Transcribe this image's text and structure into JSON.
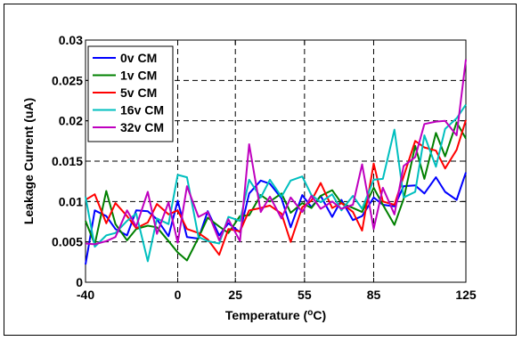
{
  "chart_data": {
    "type": "line",
    "xlabel": "Temperature (",
    "xlabel_sup": "o",
    "xlabel_unit": "C)",
    "ylabel": "Leakage Current (uA)",
    "xlim": [
      -40,
      125
    ],
    "ylim": [
      0,
      0.03
    ],
    "xticks": [
      -40,
      0,
      25,
      55,
      85,
      125
    ],
    "yticks": [
      0,
      0.005,
      0.01,
      0.015,
      0.02,
      0.025,
      0.03
    ],
    "ytick_labels": [
      "0",
      "0.005",
      "0.01",
      "0.015",
      "0.02",
      "0.025",
      "0.03"
    ],
    "grid": true,
    "legend_position": "top-left",
    "x": [
      -40,
      -36,
      -31,
      -27,
      -22,
      -18,
      -13,
      -9,
      -4,
      0,
      4,
      9,
      13,
      18,
      22,
      27,
      31,
      36,
      40,
      45,
      49,
      54,
      58,
      62,
      67,
      71,
      76,
      80,
      85,
      89,
      94,
      98,
      103,
      107,
      112,
      116,
      121,
      125
    ],
    "series": [
      {
        "name": "0v CM",
        "color": "#0000ff",
        "values": [
          0.0022,
          0.0089,
          0.0082,
          0.0066,
          0.0058,
          0.0089,
          0.0088,
          0.0078,
          0.0057,
          0.0101,
          0.0056,
          0.0054,
          0.0088,
          0.0058,
          0.0073,
          0.0062,
          0.011,
          0.0126,
          0.0122,
          0.0104,
          0.0068,
          0.0108,
          0.0093,
          0.0107,
          0.0081,
          0.0102,
          0.0077,
          0.0082,
          0.0105,
          0.0096,
          0.0094,
          0.0119,
          0.012,
          0.011,
          0.013,
          0.0112,
          0.0102,
          0.0136
        ]
      },
      {
        "name": "1v CM",
        "color": "#008000",
        "values": [
          0.0076,
          0.0047,
          0.0113,
          0.0072,
          0.0052,
          0.0066,
          0.007,
          0.0068,
          0.0051,
          0.0037,
          0.0027,
          0.0055,
          0.008,
          0.0069,
          0.0061,
          0.0082,
          0.0083,
          0.0108,
          0.01,
          0.011,
          0.0086,
          0.0098,
          0.0092,
          0.0107,
          0.0114,
          0.0098,
          0.0092,
          0.0087,
          0.0117,
          0.0096,
          0.0071,
          0.0103,
          0.0169,
          0.0128,
          0.0185,
          0.0156,
          0.0198,
          0.0178
        ]
      },
      {
        "name": "5v CM",
        "color": "#ff0000",
        "values": [
          0.0102,
          0.0109,
          0.0073,
          0.0098,
          0.0082,
          0.0067,
          0.0074,
          0.0097,
          0.0084,
          0.0089,
          0.0066,
          0.0061,
          0.0053,
          0.0034,
          0.0066,
          0.0063,
          0.0089,
          0.0092,
          0.0095,
          0.0085,
          0.005,
          0.0093,
          0.0101,
          0.0123,
          0.0092,
          0.0098,
          0.0087,
          0.0064,
          0.0147,
          0.01,
          0.0096,
          0.0131,
          0.0175,
          0.0167,
          0.0163,
          0.0141,
          0.0164,
          0.0201
        ]
      },
      {
        "name": "16v CM",
        "color": "#00bfbf",
        "values": [
          0.0106,
          0.0044,
          0.0058,
          0.0061,
          0.0076,
          0.0085,
          0.0026,
          0.0079,
          0.0072,
          0.0133,
          0.013,
          0.0056,
          0.0051,
          0.0048,
          0.0081,
          0.0076,
          0.0127,
          0.0105,
          0.0127,
          0.0106,
          0.0126,
          0.0131,
          0.0108,
          0.0099,
          0.0109,
          0.0089,
          0.0107,
          0.0091,
          0.0127,
          0.0128,
          0.0189,
          0.0105,
          0.0112,
          0.0182,
          0.0143,
          0.019,
          0.0203,
          0.022
        ]
      },
      {
        "name": "32v CM",
        "color": "#bf00bf",
        "values": [
          0.0048,
          0.0047,
          0.0051,
          0.0056,
          0.0089,
          0.0069,
          0.0112,
          0.006,
          0.0099,
          0.0049,
          0.0119,
          0.0081,
          0.0087,
          0.0052,
          0.0078,
          0.0051,
          0.0171,
          0.0087,
          0.0106,
          0.0079,
          0.0105,
          0.0087,
          0.0107,
          0.0091,
          0.01,
          0.0091,
          0.0096,
          0.0146,
          0.0066,
          0.0117,
          0.0084,
          0.0144,
          0.0155,
          0.0196,
          0.0199,
          0.02,
          0.0182,
          0.0276
        ]
      }
    ]
  }
}
